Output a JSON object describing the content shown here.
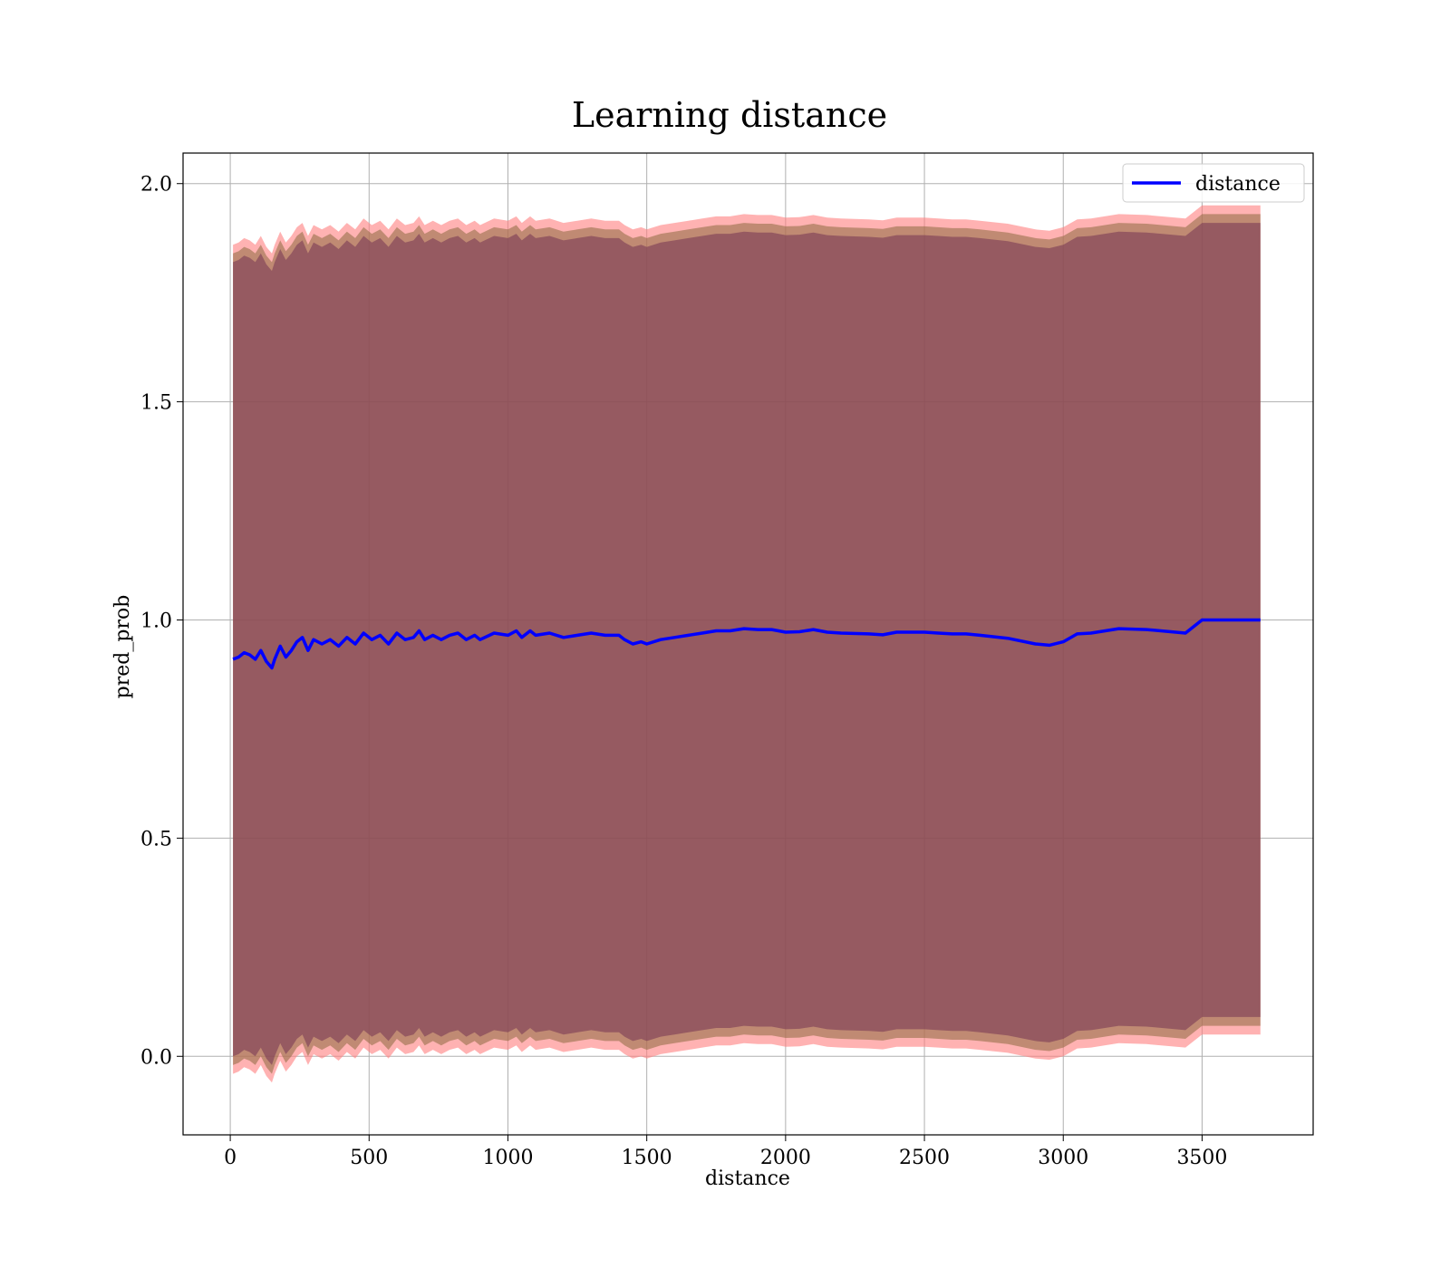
{
  "chart_data": {
    "type": "line",
    "title": "Learning distance",
    "xlabel": "distance",
    "ylabel": "pred_prob",
    "xlim": [
      -170,
      3900
    ],
    "ylim": [
      -0.18,
      2.07
    ],
    "xticks": [
      0,
      500,
      1000,
      1500,
      2000,
      2500,
      3000,
      3500
    ],
    "yticks": [
      0.0,
      0.5,
      1.0,
      1.5,
      2.0
    ],
    "grid": true,
    "legend_position": "top-right",
    "series": [
      {
        "name": "distance",
        "color": "#0000ff",
        "x": [
          10,
          30,
          50,
          70,
          90,
          110,
          130,
          150,
          160,
          180,
          200,
          220,
          240,
          260,
          280,
          300,
          330,
          360,
          390,
          420,
          450,
          480,
          510,
          540,
          570,
          600,
          630,
          660,
          680,
          700,
          730,
          760,
          790,
          820,
          850,
          880,
          900,
          950,
          1000,
          1030,
          1050,
          1080,
          1100,
          1150,
          1200,
          1250,
          1300,
          1350,
          1400,
          1420,
          1450,
          1480,
          1500,
          1550,
          1600,
          1650,
          1700,
          1750,
          1800,
          1850,
          1900,
          1950,
          2000,
          2050,
          2100,
          2150,
          2200,
          2300,
          2350,
          2400,
          2450,
          2500,
          2550,
          2600,
          2650,
          2700,
          2800,
          2900,
          2950,
          3000,
          3050,
          3100,
          3200,
          3300,
          3440,
          3500,
          3600,
          3710
        ],
        "y": [
          0.91,
          0.915,
          0.925,
          0.92,
          0.91,
          0.93,
          0.905,
          0.89,
          0.91,
          0.94,
          0.915,
          0.93,
          0.95,
          0.96,
          0.93,
          0.955,
          0.945,
          0.955,
          0.94,
          0.96,
          0.945,
          0.97,
          0.955,
          0.965,
          0.945,
          0.97,
          0.955,
          0.96,
          0.975,
          0.955,
          0.965,
          0.955,
          0.965,
          0.97,
          0.955,
          0.965,
          0.955,
          0.97,
          0.965,
          0.975,
          0.96,
          0.975,
          0.965,
          0.97,
          0.96,
          0.965,
          0.97,
          0.965,
          0.965,
          0.955,
          0.945,
          0.95,
          0.945,
          0.955,
          0.96,
          0.965,
          0.97,
          0.975,
          0.975,
          0.98,
          0.978,
          0.978,
          0.972,
          0.973,
          0.978,
          0.972,
          0.97,
          0.968,
          0.966,
          0.972,
          0.972,
          0.972,
          0.97,
          0.968,
          0.968,
          0.965,
          0.958,
          0.945,
          0.942,
          0.95,
          0.968,
          0.97,
          0.98,
          0.978,
          0.97,
          1.0,
          1.0,
          1.0
        ]
      }
    ],
    "bands": [
      {
        "color": "#ff7f7f",
        "opacity": 0.6,
        "width": 0.95
      },
      {
        "color": "#8c6a3f",
        "opacity": 0.55,
        "width": 0.93
      },
      {
        "color": "#7a3a55",
        "opacity": 0.6,
        "width": 0.91
      }
    ]
  }
}
